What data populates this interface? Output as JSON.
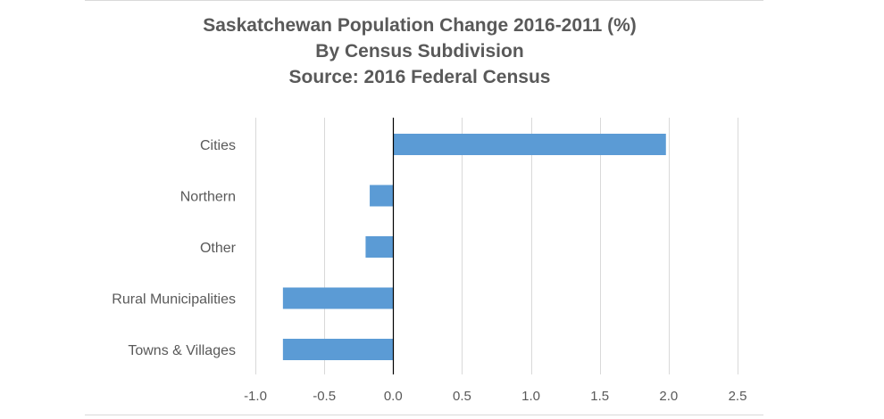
{
  "chart_data": {
    "type": "bar",
    "orientation": "horizontal",
    "title_lines": [
      "Saskatchewan Population Change 2016-2011 (%)",
      "By Census Subdivision",
      "Source: 2016 Federal Census"
    ],
    "categories": [
      "Cities",
      "Northern",
      "Other",
      "Rural Municipalities",
      "Towns & Villages"
    ],
    "values": [
      1.98,
      -0.17,
      -0.2,
      -0.8,
      -0.8
    ],
    "xlabel": "",
    "ylabel": "",
    "xlim": [
      -1.0,
      2.5
    ],
    "xticks": [
      -1.0,
      -0.5,
      0.0,
      0.5,
      1.0,
      1.5,
      2.0,
      2.5
    ],
    "xtick_labels": [
      "-1.0",
      "-0.5",
      "0.0",
      "0.5",
      "1.0",
      "1.5",
      "2.0",
      "2.5"
    ],
    "grid": true,
    "legend": "none",
    "bar_color": "#5b9bd5",
    "grid_color": "#d9d9d9",
    "axis_color": "#000000"
  }
}
